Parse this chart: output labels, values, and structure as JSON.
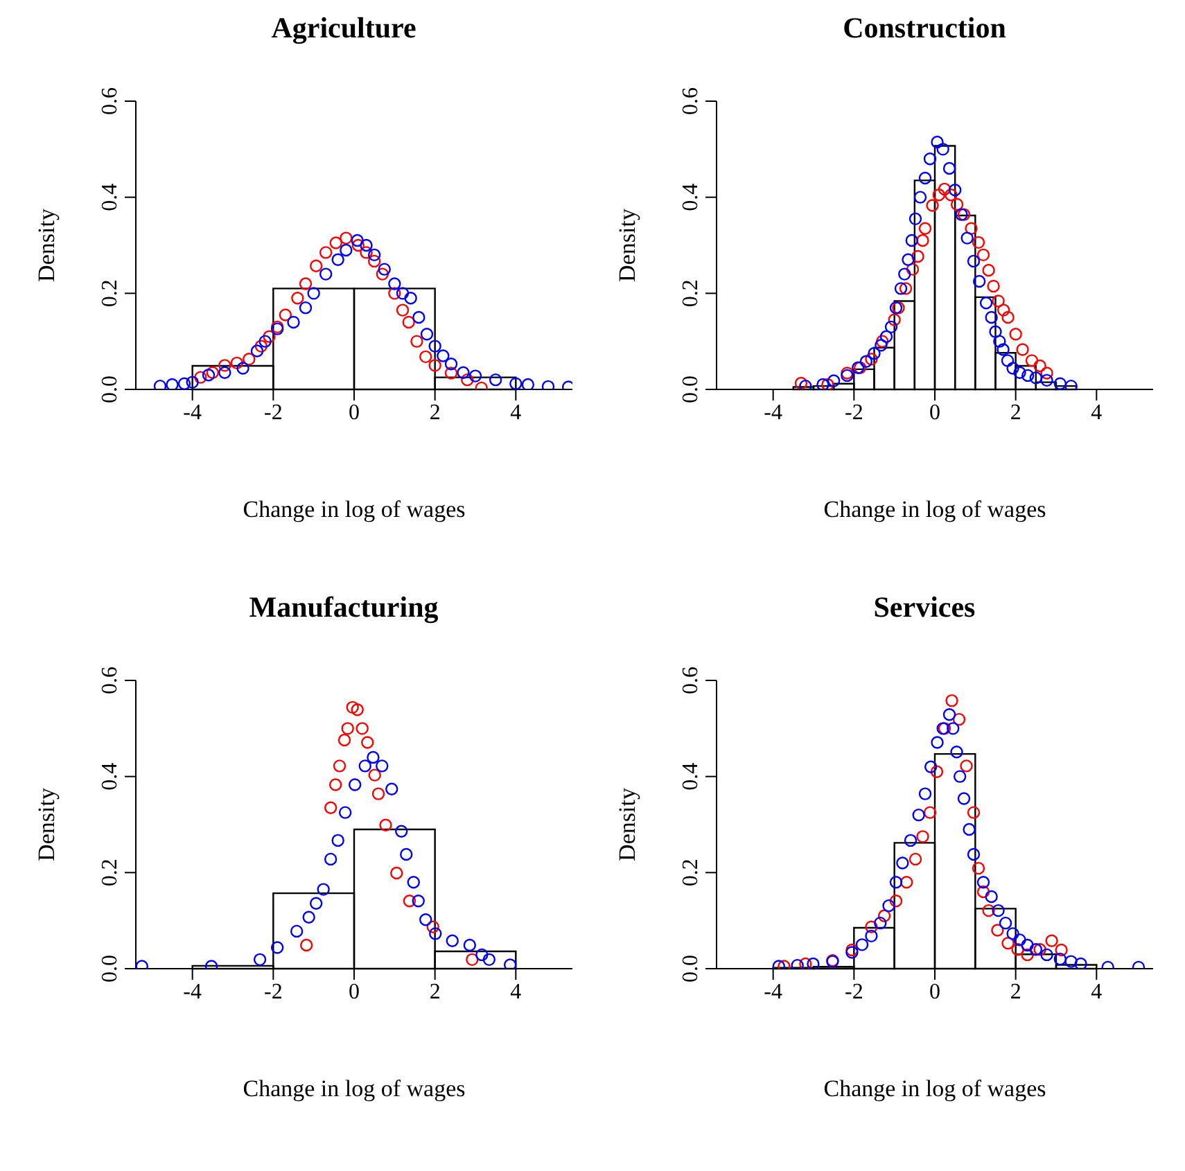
{
  "chart_data": [
    {
      "type": "histogram",
      "title": "Agriculture",
      "xlabel": "Change in log of wages",
      "ylabel": "Density",
      "bins": [
        -4,
        -2,
        0,
        2,
        4
      ],
      "values": [
        0.049,
        0.21,
        0.21,
        0.025
      ],
      "xlim": [
        -5.4,
        5.4
      ],
      "ylim": [
        0,
        0.6
      ],
      "xticks": [
        -4,
        -2,
        0,
        2,
        4
      ],
      "yticks": [
        {
          "value": 0,
          "label": "0.0"
        },
        {
          "value": 0.2,
          "label": "0.2"
        },
        {
          "value": 0.4,
          "label": "0.4"
        },
        {
          "value": 0.6,
          "label": "0.6"
        }
      ],
      "marker": "circle",
      "series": [
        {
          "type": "scatter",
          "color": "#ff0000",
          "x": [
            -3.8,
            -3.5,
            -3.2,
            -2.9,
            -2.6,
            -2.3,
            -2.1,
            -1.9,
            -1.7,
            -1.4,
            -1.2,
            -0.94,
            -0.7,
            -0.45,
            -0.2,
            0.1,
            0.3,
            0.5,
            0.7,
            1,
            1.2,
            1.35,
            1.55,
            1.77,
            2,
            2.4,
            2.8,
            3.15
          ],
          "values": [
            0.025,
            0.035,
            0.05,
            0.055,
            0.063,
            0.09,
            0.11,
            0.13,
            0.155,
            0.19,
            0.22,
            0.257,
            0.285,
            0.305,
            0.315,
            0.3,
            0.285,
            0.267,
            0.24,
            0.2,
            0.165,
            0.14,
            0.1,
            0.068,
            0.05,
            0.034,
            0.02,
            0.003
          ]
        },
        {
          "type": "scatter",
          "color": "#0000ff",
          "x": [
            -4.8,
            -4.5,
            -4.2,
            -4,
            -3.6,
            -3.2,
            -2.75,
            -2.4,
            -2.2,
            -1.9,
            -1.5,
            -1.2,
            -1,
            -0.7,
            -0.4,
            -0.2,
            0.08,
            0.3,
            0.5,
            0.75,
            1,
            1.2,
            1.4,
            1.6,
            1.8,
            2,
            2.2,
            2.4,
            2.7,
            3,
            3.5,
            4,
            4.3,
            4.8,
            5.3
          ],
          "values": [
            0.007,
            0.01,
            0.012,
            0.015,
            0.03,
            0.035,
            0.044,
            0.08,
            0.1,
            0.126,
            0.14,
            0.17,
            0.2,
            0.24,
            0.27,
            0.29,
            0.31,
            0.3,
            0.28,
            0.25,
            0.22,
            0.2,
            0.19,
            0.15,
            0.115,
            0.09,
            0.07,
            0.053,
            0.035,
            0.028,
            0.02,
            0.012,
            0.01,
            0.006,
            0.005
          ]
        }
      ]
    },
    {
      "type": "histogram",
      "title": "Construction",
      "xlabel": "Change in log of wages",
      "ylabel": "Density",
      "bins": [
        -3.5,
        -3,
        -2.5,
        -2,
        -1.5,
        -1,
        -0.5,
        0,
        0.5,
        1,
        1.5,
        2,
        2.5,
        3,
        3.5
      ],
      "values": [
        0.005,
        0.007,
        0.012,
        0.042,
        0.087,
        0.184,
        0.435,
        0.507,
        0.362,
        0.192,
        0.076,
        0.049,
        0.015,
        0.007
      ],
      "xlim": [
        -5.4,
        5.4
      ],
      "ylim": [
        0,
        0.6
      ],
      "xticks": [
        -4,
        -2,
        0,
        2,
        4
      ],
      "yticks": [
        {
          "value": 0,
          "label": "0.0"
        },
        {
          "value": 0.2,
          "label": "0.2"
        },
        {
          "value": 0.4,
          "label": "0.4"
        },
        {
          "value": 0.6,
          "label": "0.6"
        }
      ],
      "marker": "circle",
      "series": [
        {
          "type": "scatter",
          "color": "#ff0000",
          "x": [
            -3.31,
            -2.65,
            -2.17,
            -1.85,
            -1.57,
            -1.3,
            -1.0,
            -0.9,
            -0.72,
            -0.55,
            -0.42,
            -0.3,
            -0.24,
            -0.06,
            0.1,
            0.24,
            0.4,
            0.55,
            0.72,
            0.9,
            1.08,
            1.2,
            1.33,
            1.45,
            1.57,
            1.7,
            1.81,
            2,
            2.17,
            2.4,
            2.6,
            2.77
          ],
          "values": [
            0.013,
            0.01,
            0.034,
            0.045,
            0.063,
            0.1,
            0.145,
            0.17,
            0.21,
            0.25,
            0.277,
            0.31,
            0.335,
            0.383,
            0.405,
            0.417,
            0.405,
            0.385,
            0.364,
            0.335,
            0.306,
            0.28,
            0.248,
            0.215,
            0.184,
            0.165,
            0.15,
            0.115,
            0.083,
            0.06,
            0.049,
            0.034
          ]
        },
        {
          "type": "scatter",
          "color": "#0000ff",
          "x": [
            -3.2,
            -2.77,
            -2.5,
            -2.17,
            -1.9,
            -1.7,
            -1.5,
            -1.33,
            -1.2,
            -1.08,
            -0.96,
            -0.84,
            -0.75,
            -0.66,
            -0.57,
            -0.48,
            -0.36,
            -0.24,
            -0.12,
            0.06,
            0.2,
            0.36,
            0.5,
            0.66,
            0.8,
            0.96,
            1.1,
            1.27,
            1.4,
            1.5,
            1.6,
            1.69,
            1.8,
            1.93,
            2.1,
            2.3,
            2.5,
            2.77,
            3.1,
            3.37
          ],
          "values": [
            0.007,
            0.01,
            0.018,
            0.029,
            0.045,
            0.058,
            0.075,
            0.092,
            0.11,
            0.13,
            0.17,
            0.21,
            0.24,
            0.27,
            0.31,
            0.355,
            0.4,
            0.44,
            0.48,
            0.515,
            0.5,
            0.46,
            0.415,
            0.364,
            0.315,
            0.267,
            0.225,
            0.18,
            0.15,
            0.12,
            0.1,
            0.083,
            0.06,
            0.044,
            0.035,
            0.029,
            0.024,
            0.019,
            0.012,
            0.007
          ]
        }
      ]
    },
    {
      "type": "histogram",
      "title": "Manufacturing",
      "xlabel": "Change in log of wages",
      "ylabel": "Density",
      "bins": [
        -4,
        -2,
        0,
        2,
        4
      ],
      "values": [
        0.006,
        0.157,
        0.29,
        0.036
      ],
      "xlim": [
        -5.4,
        5.4
      ],
      "ylim": [
        0,
        0.6
      ],
      "xticks": [
        -4,
        -2,
        0,
        2,
        4
      ],
      "yticks": [
        {
          "value": 0,
          "label": "0.0"
        },
        {
          "value": 0.2,
          "label": "0.2"
        },
        {
          "value": 0.4,
          "label": "0.4"
        },
        {
          "value": 0.6,
          "label": "0.6"
        }
      ],
      "marker": "circle",
      "series": [
        {
          "type": "scatter",
          "color": "#ff0000",
          "x": [
            -1.18,
            -0.58,
            -0.46,
            -0.36,
            -0.24,
            -0.16,
            -0.04,
            0.08,
            0.2,
            0.33,
            0.51,
            0.6,
            0.78,
            1.05,
            1.37,
            1.95,
            2.92
          ],
          "values": [
            0.049,
            0.335,
            0.383,
            0.422,
            0.476,
            0.5,
            0.544,
            0.539,
            0.5,
            0.471,
            0.403,
            0.364,
            0.299,
            0.199,
            0.141,
            0.087,
            0.019
          ]
        },
        {
          "type": "scatter",
          "color": "#0000ff",
          "x": [
            -5.25,
            -3.53,
            -2.33,
            -1.9,
            -1.42,
            -1.12,
            -0.94,
            -0.76,
            -0.58,
            -0.4,
            -0.22,
            0.02,
            0.27,
            0.47,
            0.69,
            0.93,
            1.17,
            1.29,
            1.47,
            1.59,
            1.77,
            2.01,
            2.43,
            2.86,
            3.16,
            3.34,
            3.86
          ],
          "values": [
            0.005,
            0.005,
            0.019,
            0.044,
            0.078,
            0.107,
            0.136,
            0.165,
            0.228,
            0.267,
            0.325,
            0.383,
            0.422,
            0.44,
            0.422,
            0.374,
            0.286,
            0.238,
            0.18,
            0.141,
            0.102,
            0.073,
            0.058,
            0.049,
            0.029,
            0.019,
            0.008
          ]
        }
      ]
    },
    {
      "type": "histogram",
      "title": "Services",
      "xlabel": "Change in log of wages",
      "ylabel": "Density",
      "bins": [
        -4,
        -3,
        -2,
        -1,
        0,
        1,
        2,
        3,
        4
      ],
      "values": [
        0.002,
        0.004,
        0.085,
        0.262,
        0.447,
        0.125,
        0.03,
        0.008
      ],
      "xlim": [
        -5.4,
        5.4
      ],
      "ylim": [
        0,
        0.6
      ],
      "xticks": [
        -4,
        -2,
        0,
        2,
        4
      ],
      "yticks": [
        {
          "value": 0,
          "label": "0.0"
        },
        {
          "value": 0.2,
          "label": "0.2"
        },
        {
          "value": 0.4,
          "label": "0.4"
        },
        {
          "value": 0.6,
          "label": "0.6"
        }
      ],
      "marker": "circle",
      "series": [
        {
          "type": "scatter",
          "color": "#ff0000",
          "x": [
            -3.73,
            -3.2,
            -2.53,
            -2.05,
            -1.57,
            -1.25,
            -0.96,
            -0.7,
            -0.48,
            -0.3,
            -0.12,
            0.05,
            0.24,
            0.42,
            0.6,
            0.78,
            0.96,
            1.08,
            1.2,
            1.33,
            1.55,
            1.81,
            2.05,
            2.29,
            2.6,
            2.89,
            3.13
          ],
          "values": [
            0.005,
            0.01,
            0.017,
            0.039,
            0.087,
            0.11,
            0.141,
            0.18,
            0.228,
            0.275,
            0.325,
            0.41,
            0.5,
            0.558,
            0.519,
            0.422,
            0.325,
            0.209,
            0.16,
            0.121,
            0.08,
            0.053,
            0.04,
            0.029,
            0.04,
            0.058,
            0.039
          ]
        },
        {
          "type": "scatter",
          "color": "#0000ff",
          "x": [
            -3.86,
            -3.4,
            -3.01,
            -2.53,
            -2.05,
            -1.8,
            -1.57,
            -1.35,
            -1.14,
            -0.96,
            -0.8,
            -0.6,
            -0.4,
            -0.24,
            -0.1,
            0.06,
            0.2,
            0.36,
            0.45,
            0.54,
            0.62,
            0.72,
            0.85,
            0.96,
            1.2,
            1.4,
            1.57,
            1.75,
            1.93,
            2.1,
            2.29,
            2.5,
            2.77,
            3.1,
            3.37,
            3.61,
            4.28,
            5.04
          ],
          "values": [
            0.005,
            0.007,
            0.01,
            0.015,
            0.034,
            0.05,
            0.068,
            0.095,
            0.131,
            0.18,
            0.22,
            0.267,
            0.32,
            0.364,
            0.42,
            0.471,
            0.5,
            0.529,
            0.5,
            0.451,
            0.4,
            0.354,
            0.29,
            0.238,
            0.18,
            0.15,
            0.121,
            0.095,
            0.073,
            0.06,
            0.049,
            0.04,
            0.029,
            0.02,
            0.015,
            0.01,
            0.003,
            0.003
          ]
        }
      ]
    }
  ]
}
